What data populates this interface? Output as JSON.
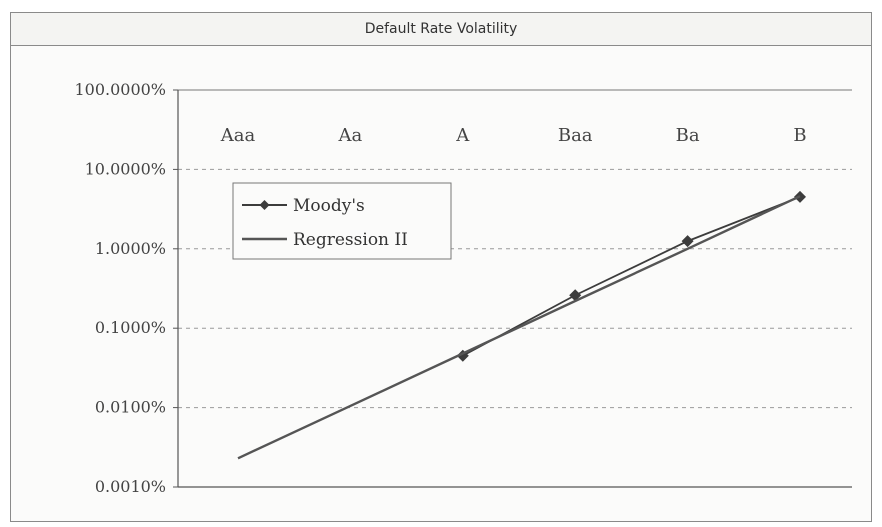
{
  "chart_data": {
    "type": "line",
    "title": "Default Rate Volatility",
    "categories": [
      "Aaa",
      "Aa",
      "A",
      "Baa",
      "Ba",
      "B"
    ],
    "y_scale": "log",
    "ylim": [
      0.001,
      100
    ],
    "y_ticks": [
      "100.0000%",
      "10.0000%",
      "1.0000%",
      "0.1000%",
      "0.0100%",
      "0.0010%"
    ],
    "grid": "horizontal dashed",
    "legend_position": "upper-left",
    "series": [
      {
        "name": "Moody's",
        "marker": "diamond",
        "color": "#3c3c3c",
        "values": [
          null,
          null,
          0.045,
          0.26,
          1.25,
          4.5
        ]
      },
      {
        "name": "Regression II",
        "marker": "none",
        "color": "#555555",
        "values": [
          0.0023,
          0.0105,
          0.048,
          0.22,
          1.0,
          4.6
        ]
      }
    ]
  }
}
